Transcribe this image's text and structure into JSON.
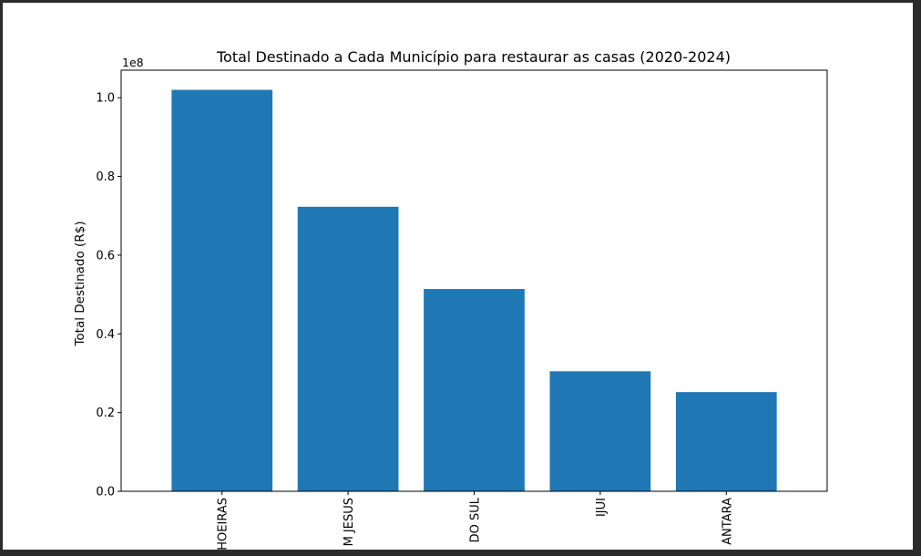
{
  "chart_data": {
    "type": "bar",
    "title": "Total Destinado a Cada Município para restaurar as casas (2020-2024)",
    "xlabel": "",
    "ylabel": "Total Destinado (R$)",
    "offset_label": "1e8",
    "categories": [
      "HOEIRAS",
      "M JESUS",
      "DO SUL",
      "IJUI",
      "ANTARA"
    ],
    "values": [
      102000000,
      72300000,
      51400000,
      30500000,
      25200000
    ],
    "scale": 100000000,
    "ylim": [
      0,
      1.07
    ],
    "yticks": [
      0.0,
      0.2,
      0.4,
      0.6,
      0.8,
      1.0
    ],
    "ytick_labels": [
      "0.0",
      "0.2",
      "0.4",
      "0.6",
      "0.8",
      "1.0"
    ],
    "bar_color": "#1f77b4",
    "grid": false,
    "legend": "none"
  }
}
